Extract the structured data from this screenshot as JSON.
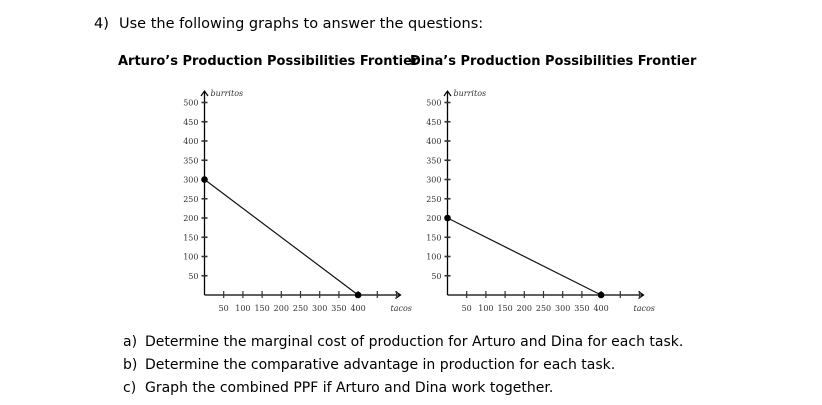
{
  "question": {
    "number": "4)",
    "text": "Use the following graphs to answer the questions:"
  },
  "charts": {
    "arturo": {
      "title": "Arturo’s Production Possibilities Frontier"
    },
    "dina": {
      "title": "Dina’s Production Possibilities Frontier"
    }
  },
  "axes": {
    "y_label": "burritos",
    "x_label": "tacos",
    "y_ticks": [
      "500",
      "450",
      "400",
      "350",
      "300",
      "250",
      "200",
      "150",
      "100",
      "50"
    ],
    "x_ticks": [
      "50",
      "100",
      "150",
      "200",
      "250",
      "300",
      "350",
      "400"
    ]
  },
  "subquestions": [
    {
      "letter": "a)",
      "text": "Determine the marginal cost of production for Arturo and Dina for each task."
    },
    {
      "letter": "b)",
      "text": "Determine the comparative advantage in production for each task."
    },
    {
      "letter": "c)",
      "text": "Graph the combined PPF if Arturo and Dina work together."
    }
  ],
  "chart_data": [
    {
      "type": "line",
      "title": "Arturo’s Production Possibilities Frontier",
      "xlabel": "tacos",
      "ylabel": "burritos",
      "x": [
        0,
        400
      ],
      "y": [
        300,
        0
      ],
      "xlim": [
        0,
        500
      ],
      "ylim": [
        0,
        500
      ],
      "x_ticks": [
        50,
        100,
        150,
        200,
        250,
        300,
        350,
        400
      ],
      "y_ticks": [
        50,
        100,
        150,
        200,
        250,
        300,
        350,
        400,
        450,
        500
      ],
      "grid": false
    },
    {
      "type": "line",
      "title": "Dina’s Production Possibilities Frontier",
      "xlabel": "tacos",
      "ylabel": "burritos",
      "x": [
        0,
        400
      ],
      "y": [
        200,
        0
      ],
      "xlim": [
        0,
        500
      ],
      "ylim": [
        0,
        500
      ],
      "x_ticks": [
        50,
        100,
        150,
        200,
        250,
        300,
        350,
        400
      ],
      "y_ticks": [
        50,
        100,
        150,
        200,
        250,
        300,
        350,
        400,
        450,
        500
      ],
      "grid": false
    }
  ]
}
